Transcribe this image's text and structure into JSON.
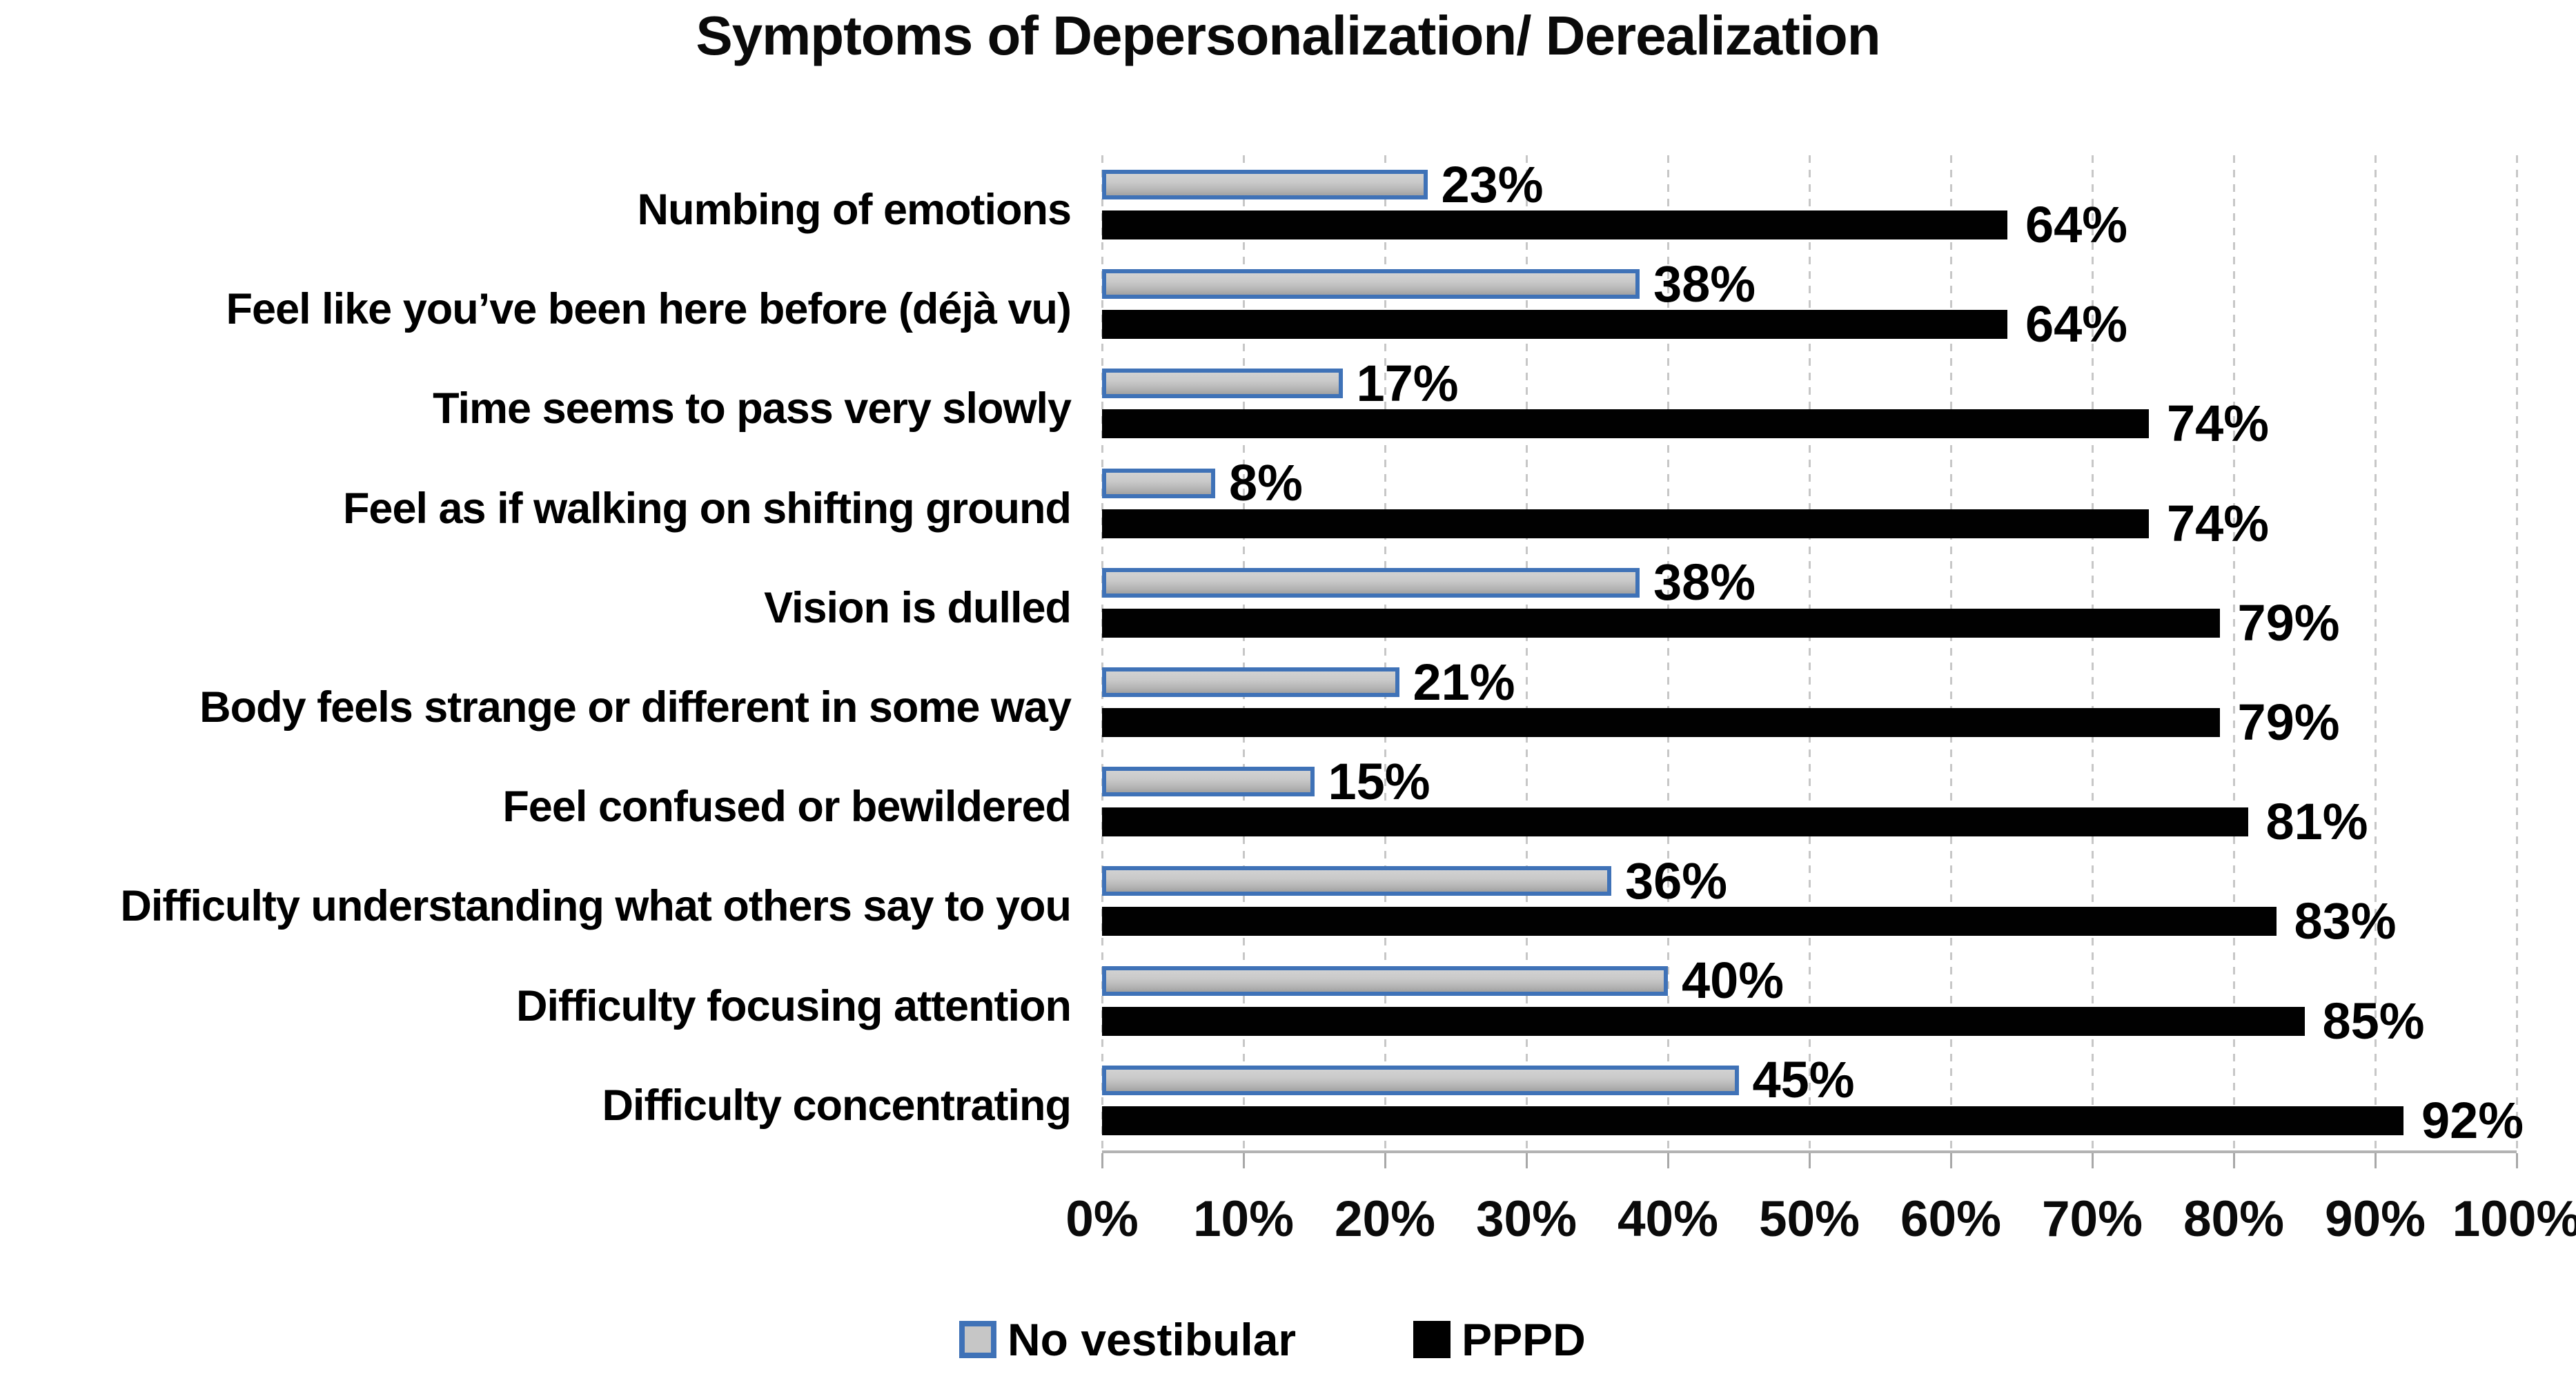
{
  "title": "Symptoms of Depersonalization/ Derealization",
  "chart_data": {
    "type": "bar",
    "orientation": "horizontal",
    "title": "Symptoms of Depersonalization/ Derealization",
    "categories_order": "top-to-bottom",
    "categories": [
      "Numbing of emotions",
      "Feel like you’ve been here before (déjà vu)",
      "Time seems to pass very slowly",
      "Feel as if walking on shifting ground",
      "Vision is dulled",
      "Body feels strange or different in some way",
      "Feel confused or bewildered",
      "Difficulty understanding what others say to you",
      "Difficulty focusing attention",
      "Difficulty concentrating"
    ],
    "series": [
      {
        "name": "No vestibular",
        "values": [
          23,
          38,
          17,
          8,
          38,
          21,
          15,
          36,
          40,
          45
        ],
        "value_labels": [
          "23%",
          "38%",
          "17%",
          "8%",
          "38%",
          "21%",
          "15%",
          "36%",
          "40%",
          "45%"
        ],
        "fill_color": "#c6c6c6",
        "border_color": "#3f72b7"
      },
      {
        "name": "PPPD",
        "values": [
          64,
          64,
          74,
          74,
          79,
          79,
          81,
          83,
          85,
          92
        ],
        "value_labels": [
          "64%",
          "64%",
          "74%",
          "74%",
          "79%",
          "79%",
          "81%",
          "83%",
          "85%",
          "92%"
        ],
        "fill_color": "#010101",
        "border_color": "#010101"
      }
    ],
    "xlabel": "",
    "ylabel": "",
    "xlim": [
      0,
      100
    ],
    "x_ticks": [
      "0%",
      "10%",
      "20%",
      "30%",
      "40%",
      "50%",
      "60%",
      "70%",
      "80%",
      "90%",
      "100%"
    ],
    "grid": "vertical-dashed",
    "gridline_color": "#c7c7c7",
    "axis_line_color": "#b3b3b3",
    "data_label_color": "#000000",
    "legend_position": "bottom"
  }
}
